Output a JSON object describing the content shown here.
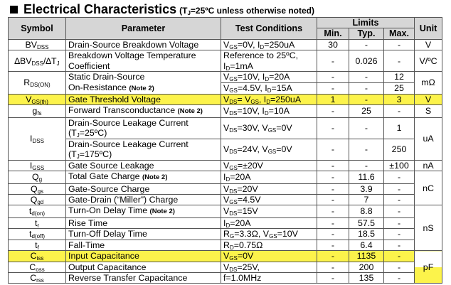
{
  "title": {
    "main": "Electrical Characteristics",
    "sub_prefix": "(T",
    "sub_idx": "J",
    "sub_rest": "=25ºC unless otherwise noted)"
  },
  "headers": {
    "symbol": "Symbol",
    "parameter": "Parameter",
    "conditions": "Test Conditions",
    "limits": "Limits",
    "min": "Min.",
    "typ": "Typ.",
    "max": "Max.",
    "unit": "Unit"
  },
  "note2": "(Note 2)",
  "rows": {
    "bvdss": {
      "sym": "BV",
      "sym_sub": "DSS",
      "param": "Drain-Source Breakdown Voltage",
      "cond": "V_GS=0V, I_D=250uA",
      "min": "30",
      "typ": "-",
      "max": "-",
      "unit": "V"
    },
    "dbv": {
      "sym1": "∆BV",
      "sym1_sub": "DSS",
      "sym2": "/∆T",
      "sym2_sub": "J",
      "param1": "Breakdown Voltage Temperature",
      "param2": "Coefficient",
      "cond1": "Reference to 25ºC,",
      "cond2": "I",
      "cond2_sub": "D",
      "cond2_rest": "=1mA",
      "min": "-",
      "typ": "0.026",
      "max": "-",
      "unit": "V/ºC"
    },
    "rdson": {
      "sym": "R",
      "sym_sub": "DS(ON)",
      "param1": "Static Drain-Source",
      "param2": "On-Resistance",
      "c1a": "V",
      "c1a_sub": "GS",
      "c1b": "=10V, I",
      "c1b_sub": "D",
      "c1c": "=20A",
      "c2a": "V",
      "c2a_sub": "GS",
      "c2b": "=4.5V, I",
      "c2b_sub": "D",
      "c2c": "=15A",
      "min1": "-",
      "typ1": "-",
      "max1": "12",
      "min2": "-",
      "typ2": "-",
      "max2": "25",
      "unit": "mΩ"
    },
    "vgsth": {
      "sym": "V",
      "sym_sub": "GS(th)",
      "param": "Gate Threshold Voltage",
      "ca": "V",
      "ca_sub": "DS",
      "cb": "= V",
      "cb_sub": "GS",
      "cc": ", I",
      "cc_sub": "D",
      "cd": "=250uA",
      "min": "1",
      "typ": "-",
      "max": "3",
      "unit": "V"
    },
    "gfs": {
      "sym": "g",
      "sym_sub": "fs",
      "param": "Forward Transconductance",
      "ca": "V",
      "ca_sub": "DS",
      "cb": "=10V, I",
      "cb_sub": "D",
      "cc": "=10A",
      "min": "-",
      "typ": "25",
      "max": "-",
      "unit": "S"
    },
    "idss": {
      "sym": "I",
      "sym_sub": "DSS",
      "p1a": "Drain-Source Leakage Current",
      "p1b": "(T",
      "p1b_sub": "J",
      "p1c": "=25ºC)",
      "p2a": "Drain-Source Leakage Current",
      "p2b": "(T",
      "p2b_sub": "J",
      "p2c": "=175ºC)",
      "c1a": "V",
      "c1a_sub": "DS",
      "c1b": "=30V, V",
      "c1b_sub": "GS",
      "c1c": "=0V",
      "c2a": "V",
      "c2a_sub": "DS",
      "c2b": "=24V, V",
      "c2b_sub": "GS",
      "c2c": "=0V",
      "min1": "-",
      "typ1": "-",
      "max1": "1",
      "min2": "-",
      "typ2": "-",
      "max2": "250",
      "unit": "uA"
    },
    "igss": {
      "sym": "I",
      "sym_sub": "GSS",
      "param": "Gate Source Leakage",
      "ca": "V",
      "ca_sub": "GS",
      "cb": "=±20V",
      "min": "-",
      "typ": "-",
      "max": "±100",
      "unit": "nA"
    },
    "qg": {
      "sym": "Q",
      "sym_sub": "g",
      "param": "Total Gate Charge",
      "ca": "I",
      "ca_sub": "D",
      "cb": "=20A",
      "min": "-",
      "typ": "11.6",
      "max": "-"
    },
    "qgs": {
      "sym": "Q",
      "sym_sub": "gs",
      "param": "Gate-Source Charge",
      "ca": "V",
      "ca_sub": "DS",
      "cb": "=20V",
      "min": "-",
      "typ": "3.9",
      "max": "-",
      "unit": "nC"
    },
    "qgd": {
      "sym": "Q",
      "sym_sub": "gd",
      "param": "Gate-Drain (“Miller”) Charge",
      "ca": "V",
      "ca_sub": "GS",
      "cb": "=4.5V",
      "min": "-",
      "typ": "7",
      "max": "-"
    },
    "tdon": {
      "sym": "t",
      "sym_sub": "d(on)",
      "param": "Turn-On Delay Time",
      "ca": "V",
      "ca_sub": "DS",
      "cb": "=15V",
      "min": "-",
      "typ": "8.8",
      "max": "-"
    },
    "tr": {
      "sym": "t",
      "sym_sub": "r",
      "param": "Rise Time",
      "ca": "I",
      "ca_sub": "D",
      "cb": "=20A",
      "min": "-",
      "typ": "57.5",
      "max": "-",
      "unit": "nS"
    },
    "tdoff": {
      "sym": "t",
      "sym_sub": "d(off)",
      "param": "Turn-Off Delay Time",
      "ca": "R",
      "ca_sub": "G",
      "cb": "=3.3Ω, V",
      "cb_sub": "GS",
      "cc": "=10V",
      "min": "-",
      "typ": "18.5",
      "max": "-"
    },
    "tf": {
      "sym": "t",
      "sym_sub": "f",
      "param": "Fall-Time",
      "ca": "R",
      "ca_sub": "D",
      "cb": "=0.75Ω",
      "min": "-",
      "typ": "6.4",
      "max": "-"
    },
    "ciss": {
      "sym": "C",
      "sym_sub": "iss",
      "param": "Input Capacitance",
      "ca": "V",
      "ca_sub": "GS",
      "cb": "=0V",
      "min": "-",
      "typ": "1135",
      "max": "-"
    },
    "coss": {
      "sym": "C",
      "sym_sub": "oss",
      "param": "Output Capacitance",
      "ca": "V",
      "ca_sub": "DS",
      "cb": "=25V,",
      "min": "-",
      "typ": "200",
      "max": "-",
      "unit": "pF"
    },
    "crss": {
      "sym": "C",
      "sym_sub": "rss",
      "param": "Reverse Transfer Capacitance",
      "ca": "f=1.0MHz",
      "min": "-",
      "typ": "135",
      "max": "-"
    }
  }
}
